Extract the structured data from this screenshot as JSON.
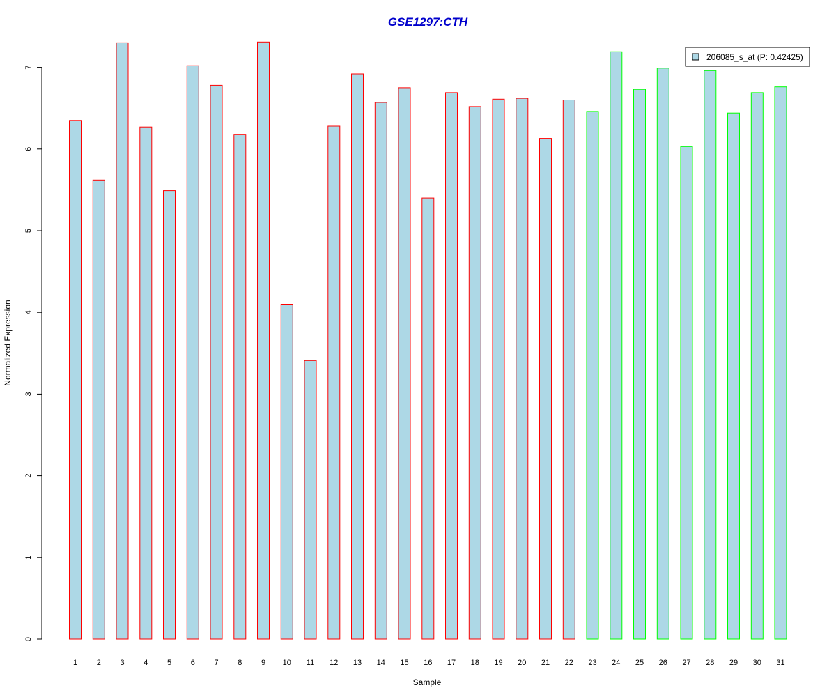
{
  "chart_data": {
    "type": "bar",
    "title": "GSE1297:CTH",
    "xlabel": "Sample",
    "ylabel": "Normalized Expression",
    "categories": [
      "1",
      "2",
      "3",
      "4",
      "5",
      "6",
      "7",
      "8",
      "9",
      "10",
      "11",
      "12",
      "13",
      "14",
      "15",
      "16",
      "17",
      "18",
      "19",
      "20",
      "21",
      "22",
      "23",
      "24",
      "25",
      "26",
      "27",
      "28",
      "29",
      "30",
      "31"
    ],
    "values": [
      6.35,
      5.62,
      7.3,
      6.27,
      5.49,
      7.02,
      6.78,
      6.18,
      7.31,
      4.1,
      3.41,
      6.28,
      6.92,
      6.57,
      6.75,
      5.4,
      6.69,
      6.52,
      6.61,
      6.62,
      6.13,
      6.6,
      6.46,
      7.19,
      6.73,
      6.99,
      6.03,
      6.96,
      6.44,
      6.69,
      6.76
    ],
    "groups": [
      "red",
      "red",
      "red",
      "red",
      "red",
      "red",
      "red",
      "red",
      "red",
      "red",
      "red",
      "red",
      "red",
      "red",
      "red",
      "red",
      "red",
      "red",
      "red",
      "red",
      "red",
      "red",
      "green",
      "green",
      "green",
      "green",
      "green",
      "green",
      "green",
      "green",
      "green"
    ],
    "yticks": [
      0,
      1,
      2,
      3,
      4,
      5,
      6,
      7
    ],
    "ylim": [
      0,
      7.35
    ],
    "grid": false,
    "legend": {
      "placement": "top-right",
      "entries": [
        {
          "label": "206085_s_at (P: 0.42425)",
          "fill": "#add8e6"
        }
      ]
    },
    "colors": {
      "bar_fill": "#add8e6",
      "red_border": "#ff0000",
      "green_border": "#00ff00",
      "title": "#0000cc"
    }
  }
}
